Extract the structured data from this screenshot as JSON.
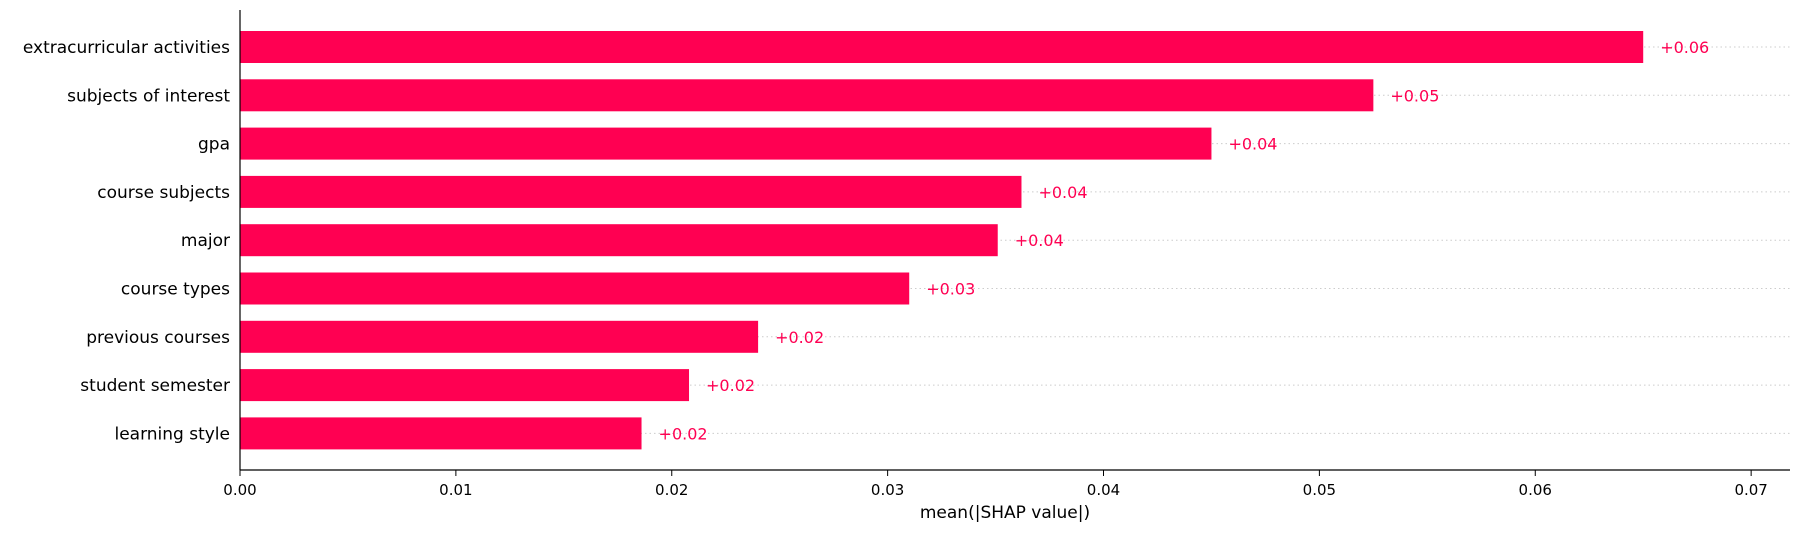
{
  "chart_data": {
    "type": "bar",
    "orientation": "horizontal",
    "categories": [
      "extracurricular activities",
      "subjects of interest",
      "gpa",
      "course subjects",
      "major",
      "course types",
      "previous courses",
      "student semester",
      "learning style"
    ],
    "values": [
      0.065,
      0.0525,
      0.045,
      0.0362,
      0.0351,
      0.031,
      0.024,
      0.0208,
      0.0186
    ],
    "value_labels": [
      "+0.06",
      "+0.05",
      "+0.04",
      "+0.04",
      "+0.04",
      "+0.03",
      "+0.02",
      "+0.02",
      "+0.02"
    ],
    "xlabel": "mean(|SHAP value|)",
    "ylabel": "",
    "title": "",
    "xlim": [
      0,
      0.0718
    ],
    "xticks": [
      0.0,
      0.01,
      0.02,
      0.03,
      0.04,
      0.05,
      0.06,
      0.07
    ],
    "xtick_labels": [
      "0.00",
      "0.01",
      "0.02",
      "0.03",
      "0.04",
      "0.05",
      "0.06",
      "0.07"
    ],
    "grid": "dotted horizontal guide lines per row",
    "legend": "none",
    "bar_color": "#ff0052",
    "label_color": "#ff0052",
    "grid_color": "#cccccc"
  }
}
